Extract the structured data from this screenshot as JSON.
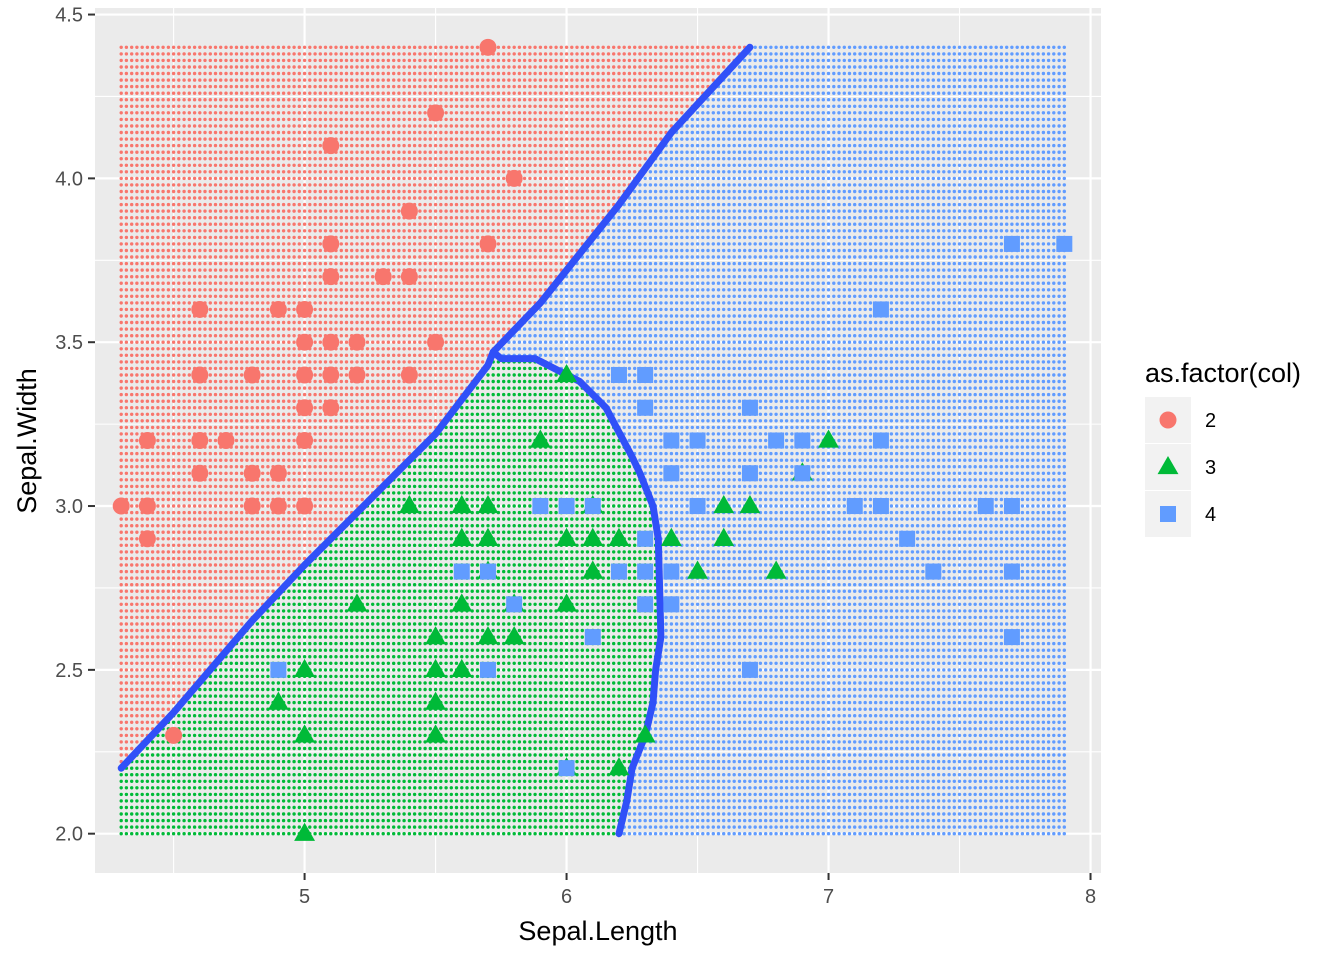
{
  "chart_data": {
    "type": "scatter",
    "xlabel": "Sepal.Length",
    "ylabel": "Sepal.Width",
    "xlim": [
      4.2,
      8.04
    ],
    "ylim": [
      1.88,
      4.52
    ],
    "x_ticks": [
      "5",
      "6",
      "7",
      "8"
    ],
    "y_ticks": [
      "2.0",
      "2.5",
      "3.0",
      "3.5",
      "4.0",
      "4.5"
    ],
    "grid": true,
    "legend": {
      "title": "as.factor(col)",
      "placement": "right",
      "entries": [
        {
          "label": "2",
          "shape": "circle",
          "color": "#F8766D"
        },
        {
          "label": "3",
          "shape": "triangle",
          "color": "#00BA38"
        },
        {
          "label": "4",
          "shape": "square",
          "color": "#619CFF"
        }
      ]
    },
    "background_grid": {
      "x_range": [
        4.3,
        7.9
      ],
      "y_range": [
        2.0,
        4.4
      ],
      "step": 0.02,
      "description": "classification regions"
    },
    "regions": {
      "class_2": "above line from (4.3,2.2) to (6.7,4.4)",
      "class_3": "below that line and left of boundary polygon",
      "class_4": "remaining area"
    },
    "boundary_line": {
      "color": "#3050F8",
      "points": [
        [
          4.3,
          2.2
        ],
        [
          4.5,
          2.37
        ],
        [
          4.8,
          2.65
        ],
        [
          5.0,
          2.82
        ],
        [
          5.2,
          2.98
        ],
        [
          5.5,
          3.22
        ],
        [
          5.7,
          3.43
        ],
        [
          5.72,
          3.47
        ],
        [
          5.9,
          3.62
        ],
        [
          6.2,
          3.92
        ],
        [
          6.4,
          4.14
        ],
        [
          6.7,
          4.4
        ]
      ]
    },
    "boundary_line_2": {
      "color": "#3050F8",
      "points": [
        [
          5.72,
          3.47
        ],
        [
          5.75,
          3.45
        ],
        [
          5.88,
          3.45
        ],
        [
          6.05,
          3.38
        ],
        [
          6.15,
          3.3
        ],
        [
          6.25,
          3.15
        ],
        [
          6.28,
          3.1
        ],
        [
          6.33,
          3.0
        ],
        [
          6.35,
          2.9
        ],
        [
          6.36,
          2.6
        ],
        [
          6.34,
          2.5
        ],
        [
          6.33,
          2.4
        ],
        [
          6.3,
          2.3
        ],
        [
          6.25,
          2.2
        ],
        [
          6.23,
          2.1
        ],
        [
          6.2,
          2.0
        ]
      ]
    },
    "series": [
      {
        "name": "2",
        "marker": "circle",
        "color": "#F8766D",
        "points": [
          [
            5.7,
            4.4
          ],
          [
            5.5,
            4.2
          ],
          [
            5.1,
            4.1
          ],
          [
            5.8,
            4.0
          ],
          [
            5.4,
            3.9
          ],
          [
            5.7,
            3.8
          ],
          [
            5.1,
            3.8
          ],
          [
            5.1,
            3.7
          ],
          [
            5.3,
            3.7
          ],
          [
            5.4,
            3.7
          ],
          [
            4.6,
            3.6
          ],
          [
            4.9,
            3.6
          ],
          [
            5.0,
            3.6
          ],
          [
            5.0,
            3.5
          ],
          [
            5.1,
            3.5
          ],
          [
            5.2,
            3.5
          ],
          [
            5.5,
            3.5
          ],
          [
            4.6,
            3.4
          ],
          [
            4.8,
            3.4
          ],
          [
            5.0,
            3.4
          ],
          [
            5.1,
            3.4
          ],
          [
            5.2,
            3.4
          ],
          [
            5.4,
            3.4
          ],
          [
            5.0,
            3.3
          ],
          [
            5.1,
            3.3
          ],
          [
            4.4,
            3.2
          ],
          [
            4.6,
            3.2
          ],
          [
            4.7,
            3.2
          ],
          [
            5.0,
            3.2
          ],
          [
            4.6,
            3.1
          ],
          [
            4.8,
            3.1
          ],
          [
            4.9,
            3.1
          ],
          [
            4.3,
            3.0
          ],
          [
            4.4,
            3.0
          ],
          [
            4.8,
            3.0
          ],
          [
            4.9,
            3.0
          ],
          [
            5.0,
            3.0
          ],
          [
            4.4,
            2.9
          ],
          [
            4.5,
            2.3
          ]
        ]
      },
      {
        "name": "3",
        "marker": "triangle",
        "color": "#00BA38",
        "points": [
          [
            5.9,
            3.2
          ],
          [
            7.0,
            3.2
          ],
          [
            6.0,
            3.4
          ],
          [
            6.9,
            3.1
          ],
          [
            5.4,
            3.0
          ],
          [
            5.6,
            3.0
          ],
          [
            5.7,
            3.0
          ],
          [
            6.1,
            3.0
          ],
          [
            6.6,
            3.0
          ],
          [
            6.7,
            3.0
          ],
          [
            5.6,
            2.9
          ],
          [
            5.7,
            2.9
          ],
          [
            6.0,
            2.9
          ],
          [
            6.1,
            2.9
          ],
          [
            6.2,
            2.9
          ],
          [
            6.6,
            2.9
          ],
          [
            6.4,
            2.9
          ],
          [
            6.5,
            2.8
          ],
          [
            6.8,
            2.8
          ],
          [
            5.7,
            2.8
          ],
          [
            6.1,
            2.8
          ],
          [
            5.2,
            2.7
          ],
          [
            5.6,
            2.7
          ],
          [
            5.8,
            2.7
          ],
          [
            6.0,
            2.7
          ],
          [
            5.5,
            2.6
          ],
          [
            5.7,
            2.6
          ],
          [
            5.8,
            2.6
          ],
          [
            5.0,
            2.5
          ],
          [
            5.5,
            2.5
          ],
          [
            5.6,
            2.5
          ],
          [
            4.9,
            2.4
          ],
          [
            5.5,
            2.4
          ],
          [
            5.0,
            2.3
          ],
          [
            5.5,
            2.3
          ],
          [
            6.3,
            2.3
          ],
          [
            6.0,
            2.2
          ],
          [
            6.2,
            2.2
          ],
          [
            5.0,
            2.0
          ]
        ]
      },
      {
        "name": "4",
        "marker": "square",
        "color": "#619CFF",
        "points": [
          [
            7.7,
            3.8
          ],
          [
            7.9,
            3.8
          ],
          [
            7.2,
            3.6
          ],
          [
            6.2,
            3.4
          ],
          [
            6.3,
            3.4
          ],
          [
            6.3,
            3.3
          ],
          [
            6.7,
            3.3
          ],
          [
            6.4,
            3.2
          ],
          [
            6.5,
            3.2
          ],
          [
            6.8,
            3.2
          ],
          [
            6.9,
            3.2
          ],
          [
            7.2,
            3.2
          ],
          [
            6.4,
            3.1
          ],
          [
            6.7,
            3.1
          ],
          [
            6.9,
            3.1
          ],
          [
            5.9,
            3.0
          ],
          [
            6.0,
            3.0
          ],
          [
            6.1,
            3.0
          ],
          [
            6.5,
            3.0
          ],
          [
            7.1,
            3.0
          ],
          [
            7.2,
            3.0
          ],
          [
            7.6,
            3.0
          ],
          [
            7.7,
            3.0
          ],
          [
            6.3,
            2.9
          ],
          [
            7.3,
            2.9
          ],
          [
            5.6,
            2.8
          ],
          [
            5.7,
            2.8
          ],
          [
            6.2,
            2.8
          ],
          [
            6.3,
            2.8
          ],
          [
            6.4,
            2.8
          ],
          [
            7.4,
            2.8
          ],
          [
            7.7,
            2.8
          ],
          [
            5.8,
            2.7
          ],
          [
            6.3,
            2.7
          ],
          [
            6.4,
            2.7
          ],
          [
            6.1,
            2.6
          ],
          [
            7.7,
            2.6
          ],
          [
            4.9,
            2.5
          ],
          [
            5.7,
            2.5
          ],
          [
            6.7,
            2.5
          ],
          [
            6.0,
            2.2
          ]
        ]
      }
    ]
  }
}
